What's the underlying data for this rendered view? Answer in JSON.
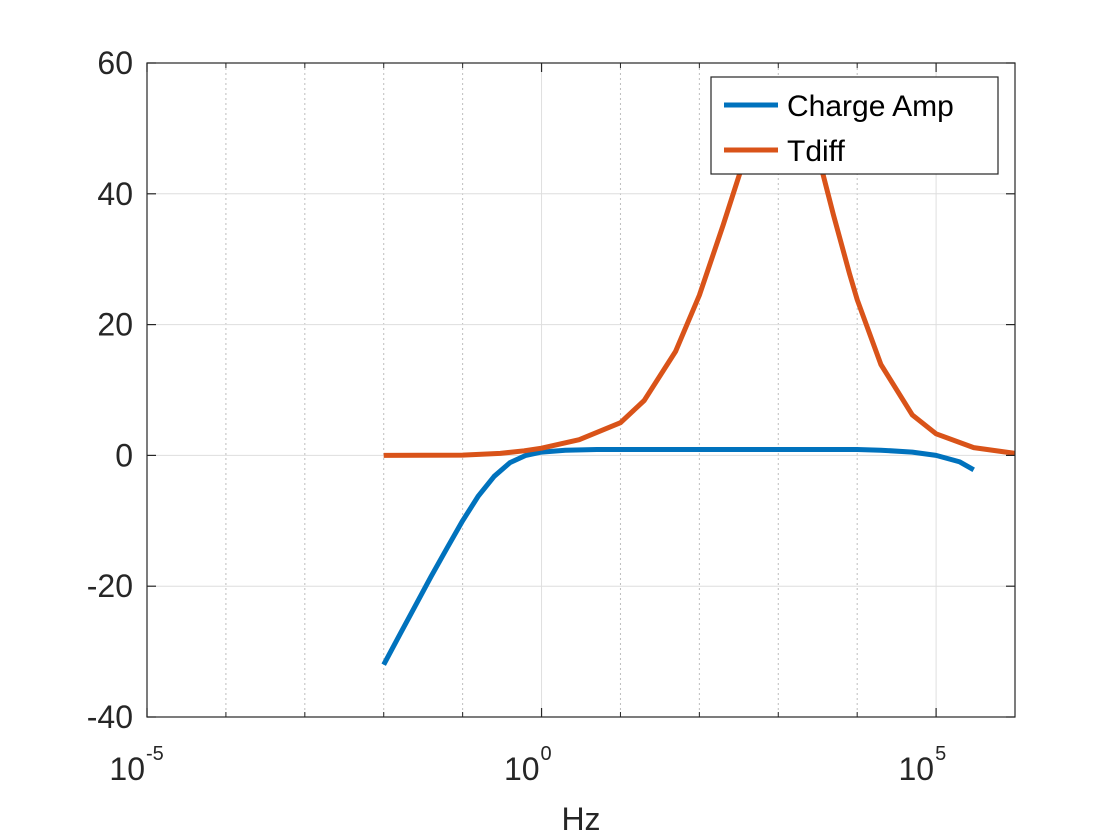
{
  "chart_data": {
    "type": "line",
    "title": "",
    "xlabel": "Hz",
    "ylabel": "",
    "x_scale": "log",
    "xlim": [
      1e-05,
      1000000.0
    ],
    "ylim": [
      -40,
      60
    ],
    "grid": true,
    "minor_grid_x": true,
    "legend_position": "top-right",
    "x_ticks": [
      {
        "value": 1e-05,
        "base": "10",
        "exp": "-5"
      },
      {
        "value": 1,
        "base": "10",
        "exp": "0"
      },
      {
        "value": 100000,
        "base": "10",
        "exp": "5"
      }
    ],
    "y_ticks": [
      {
        "value": 60,
        "label": "60"
      },
      {
        "value": 40,
        "label": "40"
      },
      {
        "value": 20,
        "label": "20"
      },
      {
        "value": 0,
        "label": "0"
      },
      {
        "value": -20,
        "label": "-20"
      },
      {
        "value": -40,
        "label": "-40"
      }
    ],
    "series": [
      {
        "name": "Charge Amp",
        "color": "#0072BD",
        "points": [
          [
            0.01,
            -32
          ],
          [
            0.0158,
            -27.5
          ],
          [
            0.0251,
            -23
          ],
          [
            0.0398,
            -18.5
          ],
          [
            0.0631,
            -14.2
          ],
          [
            0.1,
            -10
          ],
          [
            0.1585,
            -6.2
          ],
          [
            0.2512,
            -3.2
          ],
          [
            0.3981,
            -1.1
          ],
          [
            0.631,
            0.0
          ],
          [
            1,
            0.5
          ],
          [
            2,
            0.8
          ],
          [
            5,
            0.9
          ],
          [
            10,
            0.9
          ],
          [
            100,
            0.9
          ],
          [
            1000,
            0.9
          ],
          [
            10000,
            0.9
          ],
          [
            20000,
            0.8
          ],
          [
            50000,
            0.5
          ],
          [
            100000,
            0.0
          ],
          [
            200000,
            -1.0
          ],
          [
            300000,
            -2.2
          ]
        ]
      },
      {
        "name": "Tdiff",
        "color": "#D95319",
        "points": [
          [
            0.01,
            0
          ],
          [
            0.1,
            0.05
          ],
          [
            0.3,
            0.3
          ],
          [
            0.6,
            0.7
          ],
          [
            1,
            1.1
          ],
          [
            3,
            2.4
          ],
          [
            10,
            5.0
          ],
          [
            20,
            8.4
          ],
          [
            50,
            15.9
          ],
          [
            100,
            24.5
          ],
          [
            200,
            35.2
          ],
          [
            400,
            46.5
          ],
          [
            700,
            53.8
          ],
          [
            1000,
            56.8
          ],
          [
            1259,
            57.2
          ],
          [
            1500,
            56.8
          ],
          [
            2000,
            53.9
          ],
          [
            3000,
            47.2
          ],
          [
            5000,
            36.8
          ],
          [
            8000,
            27.8
          ],
          [
            10000,
            23.8
          ],
          [
            20000,
            13.9
          ],
          [
            50000,
            6.2
          ],
          [
            100000,
            3.3
          ],
          [
            300000,
            1.2
          ],
          [
            1000000,
            0.3
          ]
        ]
      }
    ]
  }
}
